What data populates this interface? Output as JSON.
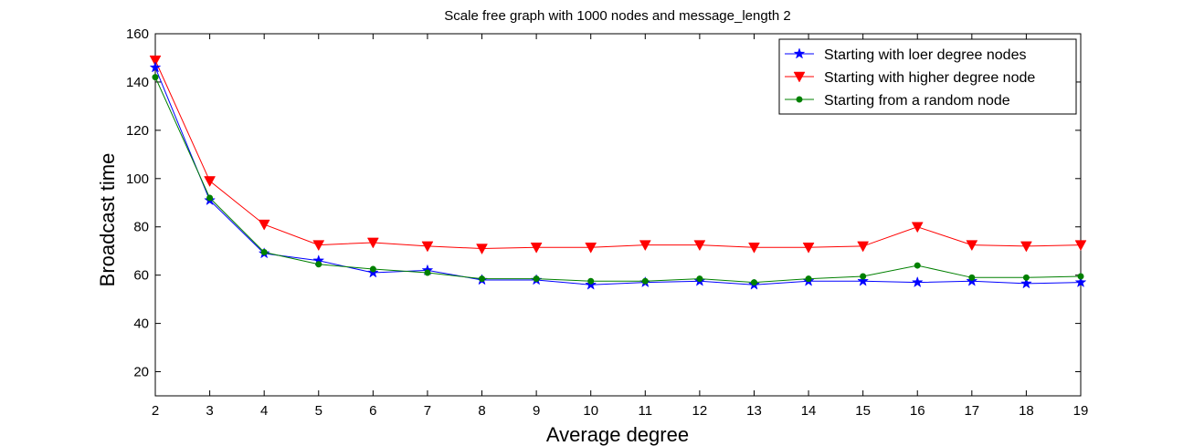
{
  "chart_data": {
    "type": "line",
    "title": "Scale free graph with 1000 nodes and message_length 2",
    "xlabel": "Average degree",
    "ylabel": "Broadcast time",
    "xlim": [
      2,
      19
    ],
    "ylim": [
      10,
      160
    ],
    "xticks": [
      2,
      3,
      4,
      5,
      6,
      7,
      8,
      9,
      10,
      11,
      12,
      13,
      14,
      15,
      16,
      17,
      18,
      19
    ],
    "yticks": [
      20,
      40,
      60,
      80,
      100,
      120,
      140,
      160
    ],
    "grid": false,
    "legend_position": "top-right",
    "x": [
      2,
      3,
      4,
      5,
      6,
      7,
      8,
      9,
      10,
      11,
      12,
      13,
      14,
      15,
      16,
      17,
      18,
      19
    ],
    "series": [
      {
        "name": "Starting with loer degree nodes",
        "color": "#0000ff",
        "marker": "star",
        "values": [
          146,
          91,
          69,
          66,
          61,
          62,
          58,
          58,
          56,
          57,
          57.5,
          56,
          57.5,
          57.5,
          57,
          57.5,
          56.5,
          57
        ]
      },
      {
        "name": "Starting with higher degree node",
        "color": "#ff0000",
        "marker": "triangle-down",
        "values": [
          149,
          99,
          81,
          72.5,
          73.5,
          72,
          71,
          71.5,
          71.5,
          72.5,
          72.5,
          71.5,
          71.5,
          72,
          80,
          72.5,
          72,
          72.5
        ]
      },
      {
        "name": "Starting from a random node",
        "color": "#008000",
        "marker": "circle",
        "values": [
          142,
          92,
          69.5,
          64.5,
          62.5,
          61,
          58.5,
          58.5,
          57.5,
          57.5,
          58.5,
          57,
          58.5,
          59.5,
          64,
          59,
          59,
          59.5
        ]
      }
    ]
  }
}
